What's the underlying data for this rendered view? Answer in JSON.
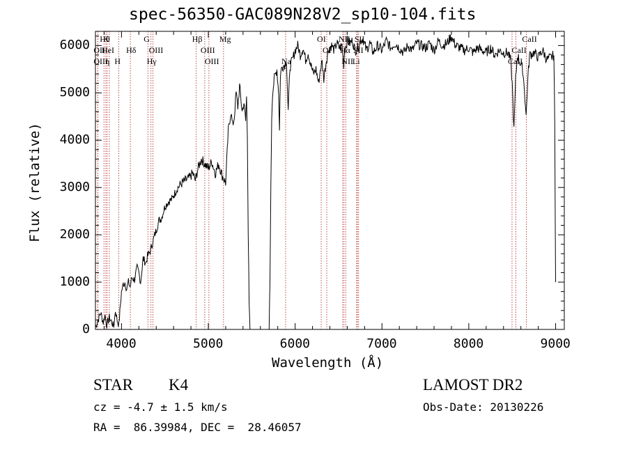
{
  "chart_data": {
    "type": "line",
    "title": "spec-56350-GAC089N28V2_sp10-104.fits",
    "xlabel": "Wavelength (Å)",
    "ylabel": "Flux (relative)",
    "xlim": [
      3700,
      9100
    ],
    "ylim": [
      0,
      6300
    ],
    "x_ticks": [
      4000,
      5000,
      6000,
      7000,
      8000,
      9000
    ],
    "x_tick_labels": [
      "4000",
      "5000",
      "6000",
      "7000",
      "8000",
      "9000"
    ],
    "y_ticks": [
      0,
      1000,
      2000,
      3000,
      4000,
      5000,
      6000
    ],
    "y_tick_labels": [
      "0",
      "1000",
      "2000",
      "3000",
      "4000",
      "5000",
      "6000"
    ],
    "series": [
      {
        "name": "spectrum",
        "color": "#000000",
        "points": [
          [
            3700,
            50
          ],
          [
            3730,
            200
          ],
          [
            3760,
            350
          ],
          [
            3790,
            150
          ],
          [
            3810,
            300
          ],
          [
            3830,
            100
          ],
          [
            3860,
            250
          ],
          [
            3890,
            150
          ],
          [
            3910,
            50
          ],
          [
            3930,
            400
          ],
          [
            3950,
            200
          ],
          [
            3970,
            100
          ],
          [
            4000,
            800
          ],
          [
            4020,
            950
          ],
          [
            4040,
            1000
          ],
          [
            4060,
            850
          ],
          [
            4080,
            1000
          ],
          [
            4100,
            900
          ],
          [
            4120,
            1100
          ],
          [
            4150,
            1050
          ],
          [
            4180,
            1300
          ],
          [
            4200,
            1200
          ],
          [
            4220,
            1000
          ],
          [
            4250,
            1500
          ],
          [
            4280,
            1400
          ],
          [
            4300,
            1550
          ],
          [
            4330,
            1650
          ],
          [
            4360,
            1850
          ],
          [
            4400,
            2100
          ],
          [
            4430,
            2300
          ],
          [
            4460,
            2350
          ],
          [
            4500,
            2600
          ],
          [
            4540,
            2700
          ],
          [
            4580,
            2750
          ],
          [
            4620,
            2900
          ],
          [
            4650,
            3000
          ],
          [
            4700,
            3100
          ],
          [
            4740,
            3150
          ],
          [
            4780,
            3200
          ],
          [
            4820,
            3300
          ],
          [
            4850,
            3150
          ],
          [
            4880,
            3400
          ],
          [
            4920,
            3600
          ],
          [
            4960,
            3500
          ],
          [
            5000,
            3400
          ],
          [
            5040,
            3550
          ],
          [
            5080,
            3300
          ],
          [
            5120,
            3500
          ],
          [
            5160,
            3250
          ],
          [
            5200,
            3100
          ],
          [
            5230,
            4200
          ],
          [
            5260,
            4600
          ],
          [
            5280,
            4300
          ],
          [
            5300,
            4500
          ],
          [
            5320,
            5000
          ],
          [
            5340,
            4700
          ],
          [
            5360,
            5150
          ],
          [
            5390,
            4600
          ],
          [
            5410,
            4800
          ],
          [
            5430,
            4400
          ],
          [
            5440,
            4900
          ],
          [
            5450,
            4100
          ],
          [
            5460,
            2000
          ],
          [
            5470,
            500
          ],
          [
            5480,
            0
          ],
          [
            5700,
            0
          ],
          [
            5710,
            1000
          ],
          [
            5720,
            3000
          ],
          [
            5730,
            4500
          ],
          [
            5740,
            5000
          ],
          [
            5760,
            5300
          ],
          [
            5790,
            5500
          ],
          [
            5810,
            5000
          ],
          [
            5820,
            4200
          ],
          [
            5830,
            5400
          ],
          [
            5850,
            5550
          ],
          [
            5880,
            5600
          ],
          [
            5900,
            5700
          ],
          [
            5920,
            4600
          ],
          [
            5940,
            5550
          ],
          [
            5970,
            5700
          ],
          [
            6000,
            5900
          ],
          [
            6030,
            6000
          ],
          [
            6060,
            5800
          ],
          [
            6090,
            5950
          ],
          [
            6120,
            5700
          ],
          [
            6150,
            5850
          ],
          [
            6180,
            5600
          ],
          [
            6210,
            5400
          ],
          [
            6240,
            5500
          ],
          [
            6270,
            5200
          ],
          [
            6290,
            5500
          ],
          [
            6310,
            5650
          ],
          [
            6330,
            5300
          ],
          [
            6360,
            5700
          ],
          [
            6390,
            5950
          ],
          [
            6420,
            6000
          ],
          [
            6450,
            5900
          ],
          [
            6480,
            6050
          ],
          [
            6510,
            5950
          ],
          [
            6540,
            6000
          ],
          [
            6560,
            5600
          ],
          [
            6570,
            5900
          ],
          [
            6600,
            6100
          ],
          [
            6630,
            6050
          ],
          [
            6660,
            6100
          ],
          [
            6690,
            5900
          ],
          [
            6720,
            5950
          ],
          [
            6750,
            6100
          ],
          [
            6780,
            6150
          ],
          [
            6820,
            5900
          ],
          [
            6860,
            6050
          ],
          [
            6900,
            5850
          ],
          [
            6950,
            6000
          ],
          [
            7000,
            5900
          ],
          [
            7050,
            6100
          ],
          [
            7100,
            5950
          ],
          [
            7150,
            6050
          ],
          [
            7200,
            5950
          ],
          [
            7250,
            5850
          ],
          [
            7300,
            6000
          ],
          [
            7350,
            5900
          ],
          [
            7400,
            6050
          ],
          [
            7450,
            6000
          ],
          [
            7500,
            5950
          ],
          [
            7550,
            6050
          ],
          [
            7600,
            5900
          ],
          [
            7650,
            6100
          ],
          [
            7700,
            6000
          ],
          [
            7750,
            6050
          ],
          [
            7800,
            6200
          ],
          [
            7820,
            6100
          ],
          [
            7850,
            6000
          ],
          [
            7900,
            5950
          ],
          [
            7950,
            5900
          ],
          [
            8000,
            5950
          ],
          [
            8050,
            5850
          ],
          [
            8100,
            5950
          ],
          [
            8150,
            5900
          ],
          [
            8200,
            5850
          ],
          [
            8250,
            5950
          ],
          [
            8300,
            5800
          ],
          [
            8350,
            5900
          ],
          [
            8400,
            5850
          ],
          [
            8450,
            5850
          ],
          [
            8480,
            5700
          ],
          [
            8500,
            5200
          ],
          [
            8520,
            4200
          ],
          [
            8540,
            5300
          ],
          [
            8560,
            5800
          ],
          [
            8590,
            5650
          ],
          [
            8620,
            5500
          ],
          [
            8640,
            5100
          ],
          [
            8660,
            4500
          ],
          [
            8680,
            5300
          ],
          [
            8700,
            5800
          ],
          [
            8750,
            5850
          ],
          [
            8800,
            5750
          ],
          [
            8850,
            5900
          ],
          [
            8900,
            5700
          ],
          [
            8950,
            5750
          ],
          [
            8980,
            5800
          ],
          [
            8990,
            4300
          ],
          [
            9000,
            1000
          ]
        ]
      }
    ],
    "line_markers": [
      {
        "x": 3798,
        "label": "Hθ",
        "row": 0
      },
      {
        "x": 3835,
        "label": "K",
        "row": 0
      },
      {
        "x": 3727,
        "label": "OII",
        "row": 1
      },
      {
        "x": 3820,
        "label": "HeI",
        "row": 1
      },
      {
        "x": 4102,
        "label": "Hδ",
        "row": 1
      },
      {
        "x": 3727,
        "label": "OIII",
        "row": 2
      },
      {
        "x": 3860,
        "label": "η",
        "row": 2
      },
      {
        "x": 3968,
        "label": "H",
        "row": 2
      },
      {
        "x": 4304,
        "label": "G",
        "row": 0
      },
      {
        "x": 4363,
        "label": "OIII",
        "row": 1
      },
      {
        "x": 4340,
        "label": "Hγ",
        "row": 2
      },
      {
        "x": 4861,
        "label": "Hβ",
        "row": 0
      },
      {
        "x": 5175,
        "label": "Mg",
        "row": 0
      },
      {
        "x": 4959,
        "label": "OIII",
        "row": 1
      },
      {
        "x": 5007,
        "label": "OIII",
        "row": 2
      },
      {
        "x": 5890,
        "label": "Na",
        "row": 2
      },
      {
        "x": 6300,
        "label": "OI",
        "row": 0
      },
      {
        "x": 6364,
        "label": "OI",
        "row": 1
      },
      {
        "x": 6548,
        "label": "NII",
        "row": 0
      },
      {
        "x": 6563,
        "label": "Hα",
        "row": 1
      },
      {
        "x": 6583,
        "label": "NII",
        "row": 2
      },
      {
        "x": 6717,
        "label": "SII",
        "row": 1
      },
      {
        "x": 6731,
        "label": "SII",
        "row": 0
      },
      {
        "x": 6708,
        "label": "Li",
        "row": 2
      },
      {
        "x": 8498,
        "label": "CaII",
        "row": 2
      },
      {
        "x": 8542,
        "label": "CaII",
        "row": 1
      },
      {
        "x": 8662,
        "label": "CaII",
        "row": 0
      }
    ]
  },
  "info": {
    "class": "STAR",
    "subclass": "K4",
    "survey": "LAMOST DR2",
    "cz": "cz = -4.7 ± 1.5 km/s",
    "obs_date": "Obs-Date: 20130226",
    "radec": "RA =  86.39984, DEC =  28.46057"
  }
}
